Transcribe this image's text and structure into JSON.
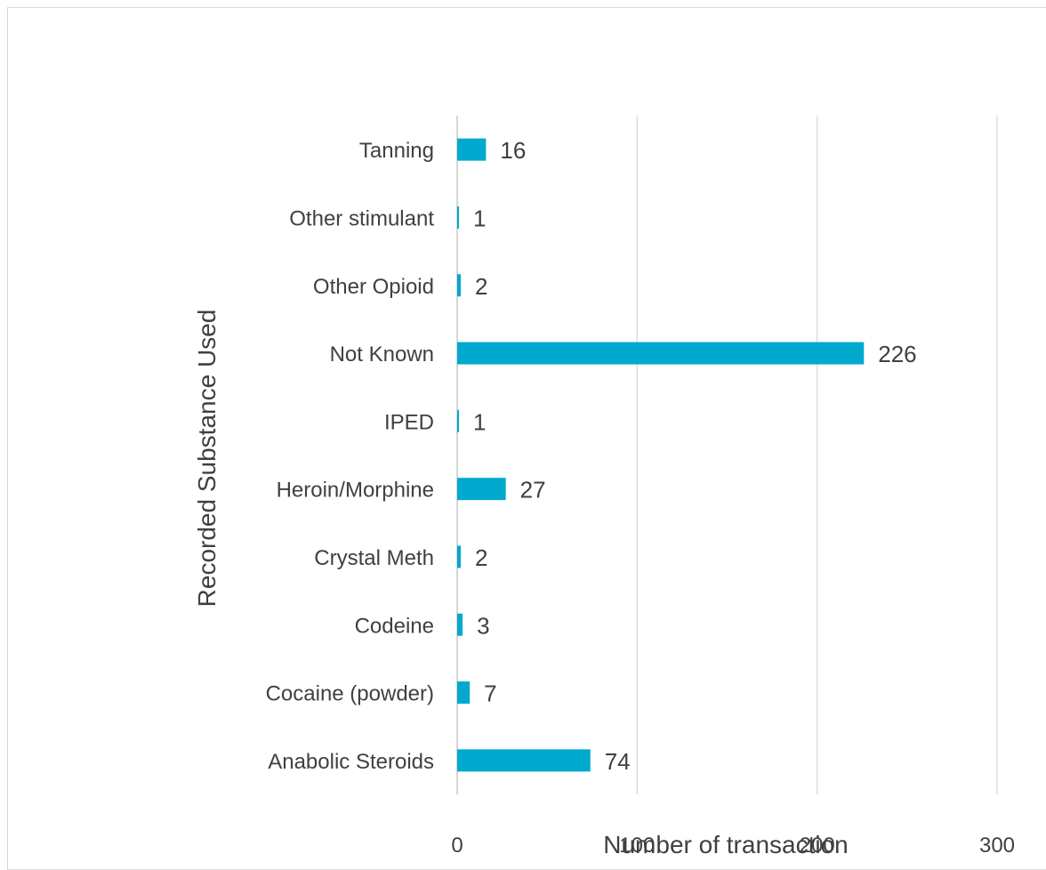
{
  "chart_data": {
    "type": "bar",
    "orientation": "horizontal",
    "title": "",
    "xlabel": "Number of transaction",
    "ylabel": "Recorded Substance Used",
    "categories": [
      "Anabolic Steroids",
      "Cocaine (powder)",
      "Codeine",
      "Crystal Meth",
      "Heroin/Morphine",
      "IPED",
      "Not Known",
      "Other Opioid",
      "Other stimulant",
      "Tanning"
    ],
    "values": [
      74,
      7,
      3,
      2,
      27,
      1,
      226,
      2,
      1,
      16
    ],
    "xlim": [
      0,
      300
    ],
    "xticks": [
      "0",
      "100",
      "200",
      "300"
    ],
    "grid": true,
    "legend": "none",
    "data_labels": true,
    "bar_color": "#00A9CE"
  }
}
